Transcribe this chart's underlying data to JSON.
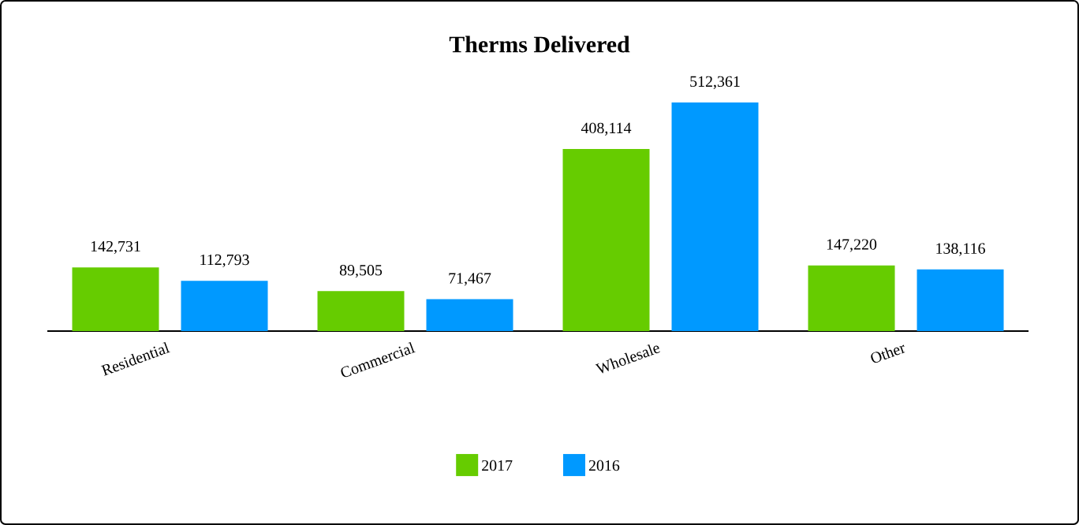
{
  "chart_data": {
    "type": "bar",
    "title": "Therms Delivered",
    "categories": [
      "Residential",
      "Commercial",
      "Wholesale",
      "Other"
    ],
    "series": [
      {
        "name": "2017",
        "color": "#66cc00",
        "values": [
          142731,
          89505,
          408114,
          147220
        ],
        "value_labels": [
          "142,731",
          "89,505",
          "408,114",
          "147,220"
        ]
      },
      {
        "name": "2016",
        "color": "#0099ff",
        "values": [
          112793,
          71467,
          512361,
          138116
        ],
        "value_labels": [
          "112,793",
          "71,467",
          "512,361",
          "138,116"
        ]
      }
    ],
    "legend": "bottom"
  }
}
